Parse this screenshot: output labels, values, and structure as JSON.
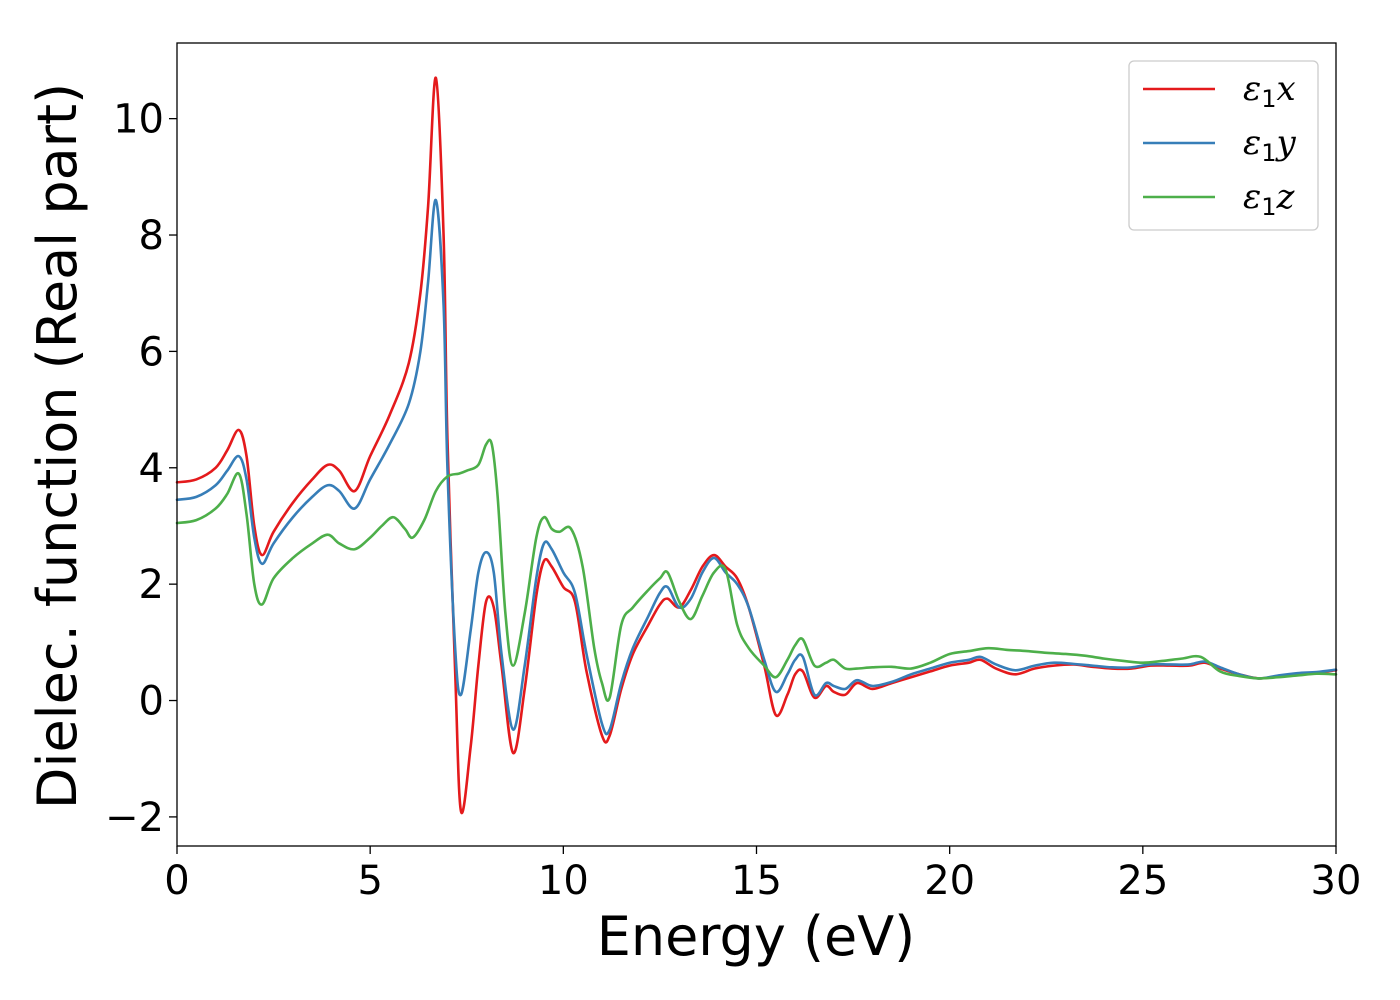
{
  "chart_data": {
    "type": "line",
    "title": "",
    "xlabel": "Energy (eV)",
    "ylabel": "Dielec. function (Real part)",
    "xlim": [
      0,
      30
    ],
    "ylim": [
      -2.5,
      11.3
    ],
    "xticks": [
      0,
      5,
      10,
      15,
      20,
      25,
      30
    ],
    "xtick_labels": [
      "0",
      "5",
      "10",
      "15",
      "20",
      "25",
      "30"
    ],
    "yticks": [
      -2,
      0,
      2,
      4,
      6,
      8,
      10
    ],
    "ytick_labels": [
      "−2",
      "0",
      "2",
      "4",
      "6",
      "8",
      "10"
    ],
    "grid": false,
    "legend_position": "top-right",
    "series": [
      {
        "name": "ε₁x",
        "legend_base": "ε",
        "legend_sub": "1",
        "legend_var": "x",
        "color": "#e41a1c",
        "x": [
          0,
          0.5,
          1.0,
          1.3,
          1.6,
          1.8,
          2.0,
          2.2,
          2.5,
          3.0,
          3.5,
          3.9,
          4.2,
          4.6,
          5.0,
          5.5,
          6.0,
          6.3,
          6.5,
          6.7,
          6.9,
          7.0,
          7.2,
          7.35,
          7.6,
          7.8,
          8.0,
          8.2,
          8.4,
          8.7,
          9.0,
          9.3,
          9.5,
          9.7,
          10.0,
          10.3,
          10.6,
          11.0,
          11.2,
          11.5,
          11.8,
          12.2,
          12.5,
          12.7,
          13.0,
          13.3,
          13.6,
          13.9,
          14.2,
          14.5,
          14.8,
          15.2,
          15.5,
          15.8,
          16.0,
          16.2,
          16.5,
          16.8,
          17.0,
          17.3,
          17.6,
          18.0,
          18.5,
          19.0,
          19.5,
          20.0,
          20.5,
          20.8,
          21.2,
          21.7,
          22.2,
          22.7,
          23.2,
          23.7,
          24.2,
          24.7,
          25.2,
          25.7,
          26.2,
          26.6,
          27.0,
          27.5,
          28.0,
          28.5,
          29.0,
          29.5,
          30.0
        ],
        "y": [
          3.75,
          3.8,
          4.0,
          4.3,
          4.65,
          4.2,
          3.0,
          2.5,
          2.9,
          3.4,
          3.8,
          4.05,
          3.95,
          3.6,
          4.2,
          4.9,
          5.8,
          7.0,
          8.5,
          10.7,
          8.0,
          4.5,
          0.5,
          -1.9,
          -0.8,
          0.6,
          1.7,
          1.6,
          0.6,
          -0.9,
          0.2,
          1.8,
          2.4,
          2.3,
          1.95,
          1.7,
          0.5,
          -0.6,
          -0.6,
          0.2,
          0.8,
          1.3,
          1.65,
          1.75,
          1.6,
          1.9,
          2.3,
          2.5,
          2.3,
          2.1,
          1.6,
          0.6,
          -0.25,
          0.1,
          0.45,
          0.5,
          0.05,
          0.25,
          0.15,
          0.1,
          0.3,
          0.2,
          0.3,
          0.4,
          0.5,
          0.6,
          0.65,
          0.7,
          0.55,
          0.45,
          0.55,
          0.6,
          0.62,
          0.58,
          0.55,
          0.55,
          0.6,
          0.6,
          0.6,
          0.65,
          0.55,
          0.45,
          0.38,
          0.42,
          0.46,
          0.48,
          0.52
        ]
      },
      {
        "name": "ε₁y",
        "legend_base": "ε",
        "legend_sub": "1",
        "legend_var": "y",
        "color": "#377eb8",
        "x": [
          0,
          0.5,
          1.0,
          1.3,
          1.6,
          1.8,
          2.0,
          2.2,
          2.5,
          3.0,
          3.5,
          3.9,
          4.2,
          4.6,
          5.0,
          5.5,
          6.0,
          6.3,
          6.5,
          6.7,
          6.9,
          7.0,
          7.2,
          7.35,
          7.6,
          7.8,
          8.0,
          8.2,
          8.4,
          8.7,
          9.0,
          9.3,
          9.5,
          9.7,
          10.0,
          10.3,
          10.6,
          11.0,
          11.2,
          11.5,
          11.8,
          12.2,
          12.5,
          12.7,
          13.0,
          13.3,
          13.6,
          13.9,
          14.2,
          14.5,
          14.8,
          15.2,
          15.5,
          15.8,
          16.0,
          16.2,
          16.5,
          16.8,
          17.0,
          17.3,
          17.6,
          18.0,
          18.5,
          19.0,
          19.5,
          20.0,
          20.5,
          20.8,
          21.2,
          21.7,
          22.2,
          22.7,
          23.2,
          23.7,
          24.2,
          24.7,
          25.2,
          25.7,
          26.2,
          26.6,
          27.0,
          27.5,
          28.0,
          28.5,
          29.0,
          29.5,
          30.0
        ],
        "y": [
          3.45,
          3.5,
          3.7,
          3.95,
          4.2,
          3.8,
          2.8,
          2.35,
          2.7,
          3.15,
          3.5,
          3.7,
          3.6,
          3.3,
          3.8,
          4.4,
          5.1,
          6.0,
          7.2,
          8.6,
          6.8,
          4.0,
          0.9,
          0.1,
          1.2,
          2.2,
          2.55,
          2.2,
          0.8,
          -0.5,
          0.6,
          2.1,
          2.7,
          2.6,
          2.2,
          1.85,
          0.8,
          -0.4,
          -0.5,
          0.3,
          0.9,
          1.45,
          1.85,
          1.95,
          1.6,
          1.75,
          2.2,
          2.45,
          2.2,
          2.0,
          1.6,
          0.7,
          0.15,
          0.45,
          0.7,
          0.75,
          0.1,
          0.3,
          0.25,
          0.2,
          0.35,
          0.25,
          0.32,
          0.45,
          0.55,
          0.65,
          0.7,
          0.75,
          0.62,
          0.52,
          0.6,
          0.65,
          0.63,
          0.6,
          0.57,
          0.57,
          0.62,
          0.62,
          0.62,
          0.67,
          0.57,
          0.45,
          0.38,
          0.43,
          0.47,
          0.49,
          0.53
        ]
      },
      {
        "name": "ε₁z",
        "legend_base": "ε",
        "legend_sub": "1",
        "legend_var": "z",
        "color": "#4daf4a",
        "x": [
          0,
          0.5,
          1.0,
          1.3,
          1.6,
          1.8,
          2.0,
          2.2,
          2.5,
          3.0,
          3.5,
          3.9,
          4.2,
          4.6,
          5.0,
          5.3,
          5.6,
          5.9,
          6.1,
          6.4,
          6.7,
          7.0,
          7.3,
          7.5,
          7.8,
          8.0,
          8.15,
          8.3,
          8.5,
          8.7,
          9.0,
          9.3,
          9.5,
          9.7,
          9.9,
          10.2,
          10.5,
          10.8,
          11.0,
          11.2,
          11.5,
          11.8,
          12.2,
          12.5,
          12.7,
          13.0,
          13.3,
          13.6,
          13.9,
          14.2,
          14.5,
          14.8,
          15.2,
          15.5,
          15.8,
          16.0,
          16.2,
          16.5,
          16.8,
          17.0,
          17.3,
          17.6,
          18.0,
          18.5,
          19.0,
          19.5,
          20.0,
          20.5,
          21.0,
          21.5,
          22.0,
          22.5,
          23.0,
          23.5,
          24.0,
          24.5,
          25.0,
          25.5,
          26.0,
          26.5,
          27.0,
          27.5,
          28.0,
          28.5,
          29.0,
          29.5,
          30.0
        ],
        "y": [
          3.05,
          3.1,
          3.3,
          3.55,
          3.9,
          3.2,
          2.0,
          1.65,
          2.1,
          2.45,
          2.7,
          2.85,
          2.7,
          2.6,
          2.8,
          3.0,
          3.15,
          2.95,
          2.8,
          3.1,
          3.6,
          3.85,
          3.9,
          3.95,
          4.05,
          4.4,
          4.4,
          3.5,
          1.5,
          0.6,
          1.5,
          2.8,
          3.15,
          2.95,
          2.9,
          2.95,
          2.3,
          0.9,
          0.3,
          0.05,
          1.3,
          1.6,
          1.9,
          2.1,
          2.2,
          1.7,
          1.4,
          1.8,
          2.2,
          2.25,
          1.3,
          0.9,
          0.6,
          0.4,
          0.7,
          0.95,
          1.05,
          0.6,
          0.65,
          0.7,
          0.55,
          0.55,
          0.57,
          0.58,
          0.55,
          0.65,
          0.8,
          0.85,
          0.9,
          0.87,
          0.85,
          0.82,
          0.8,
          0.77,
          0.72,
          0.68,
          0.65,
          0.68,
          0.72,
          0.75,
          0.5,
          0.42,
          0.38,
          0.4,
          0.43,
          0.46,
          0.45
        ]
      }
    ]
  }
}
